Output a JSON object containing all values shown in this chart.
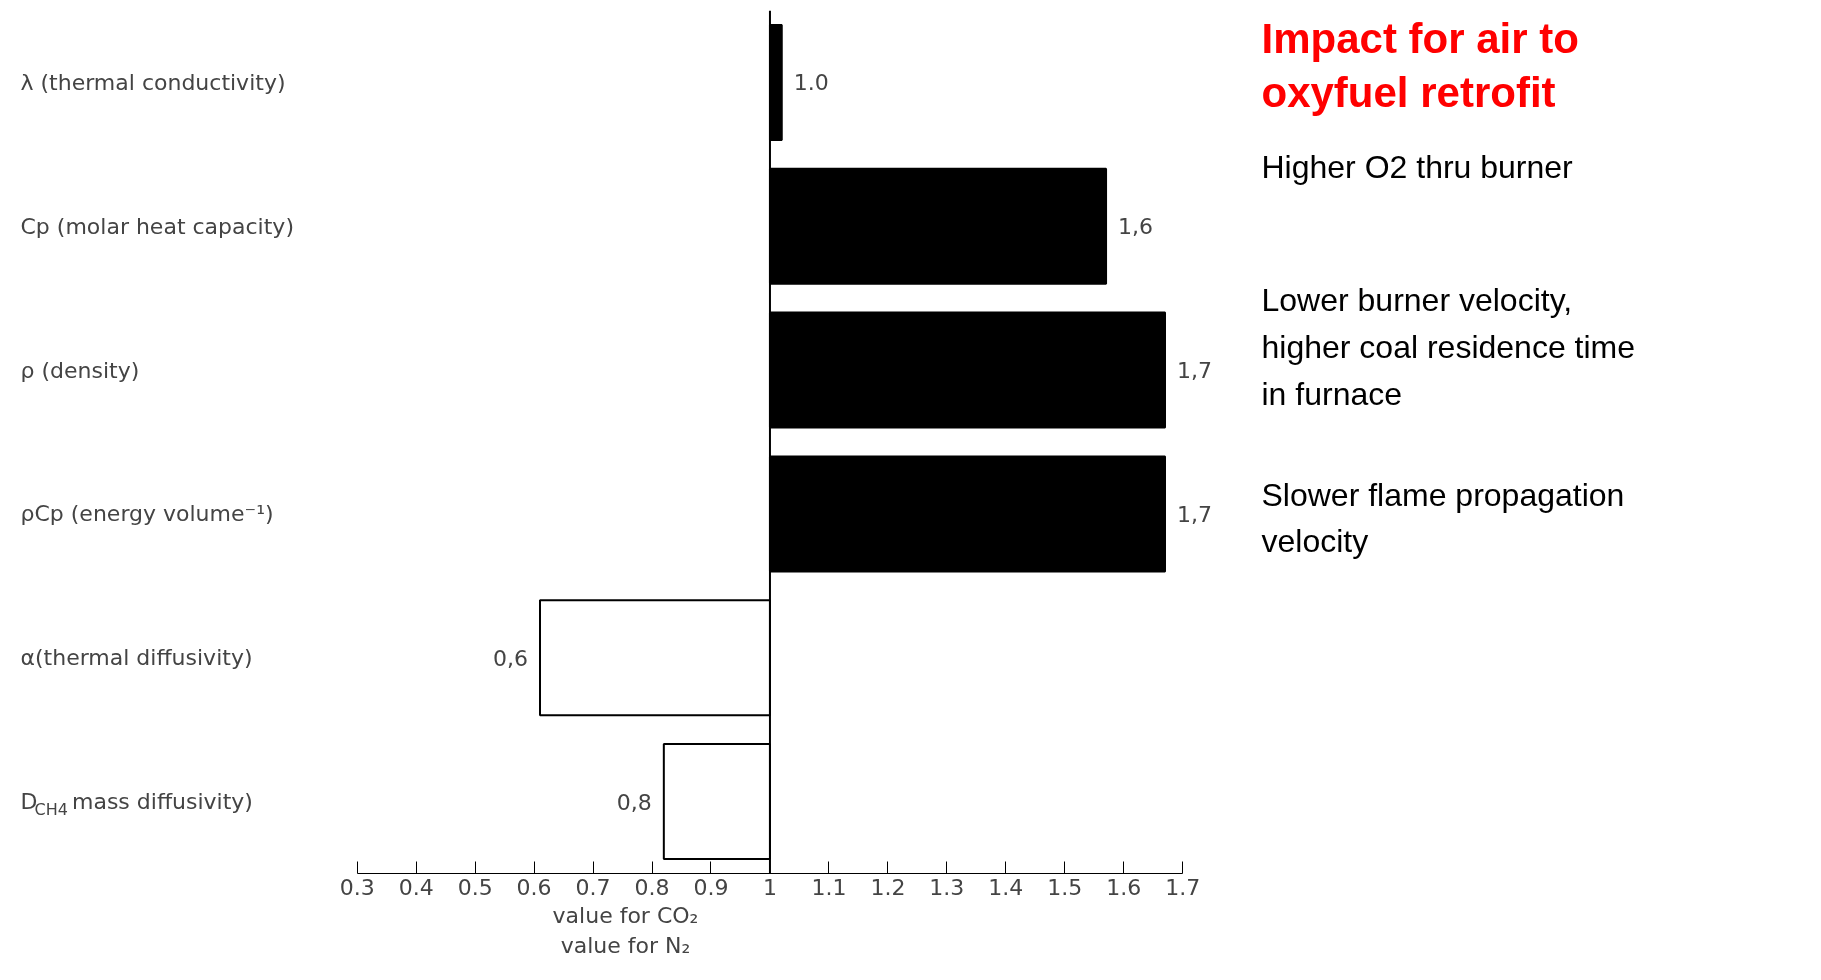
{
  "chart_data": {
    "type": "bar",
    "orientation": "horizontal",
    "title": "Impact for air to\noxyfuel retrofit",
    "categories": [
      "λ (thermal conductivity)",
      "Cp (molar heat capacity)",
      "ρ (density)",
      "ρCp (energy volume⁻¹)",
      "α(thermal diffusivity)",
      "D$_{CH4}$ mass diffusivity)"
    ],
    "base": [
      1,
      1,
      1,
      1,
      1,
      1
    ],
    "values": [
      0.02,
      0.57,
      0.67,
      0.67,
      -0.39,
      -0.18
    ],
    "value_labels": [
      "1.0",
      "1,6",
      "1,7",
      "1,7",
      "0,6",
      "0,8"
    ],
    "colors": [
      "#000000",
      "#000000",
      "#000000",
      "#000000",
      "#ffffff",
      "#ffffff"
    ],
    "xlim": [
      0.3,
      1.7
    ],
    "xticks": [
      0.3,
      0.4,
      0.5,
      0.6,
      0.7,
      0.8,
      0.9,
      1,
      1.1,
      1.2,
      1.3,
      1.4,
      1.5,
      1.6,
      1.7
    ],
    "xlabel": "value for CO₂\nvalue for N₂",
    "ref_lines": [
      {
        "axis": "x",
        "value": 1,
        "color": "#000000"
      }
    ],
    "annotations": [
      "Higher O2 thru burner",
      "Lower burner velocity,\nhigher coal residence time\nin furnace",
      "Slower flame propagation\nvelocity"
    ],
    "grid": false
  }
}
